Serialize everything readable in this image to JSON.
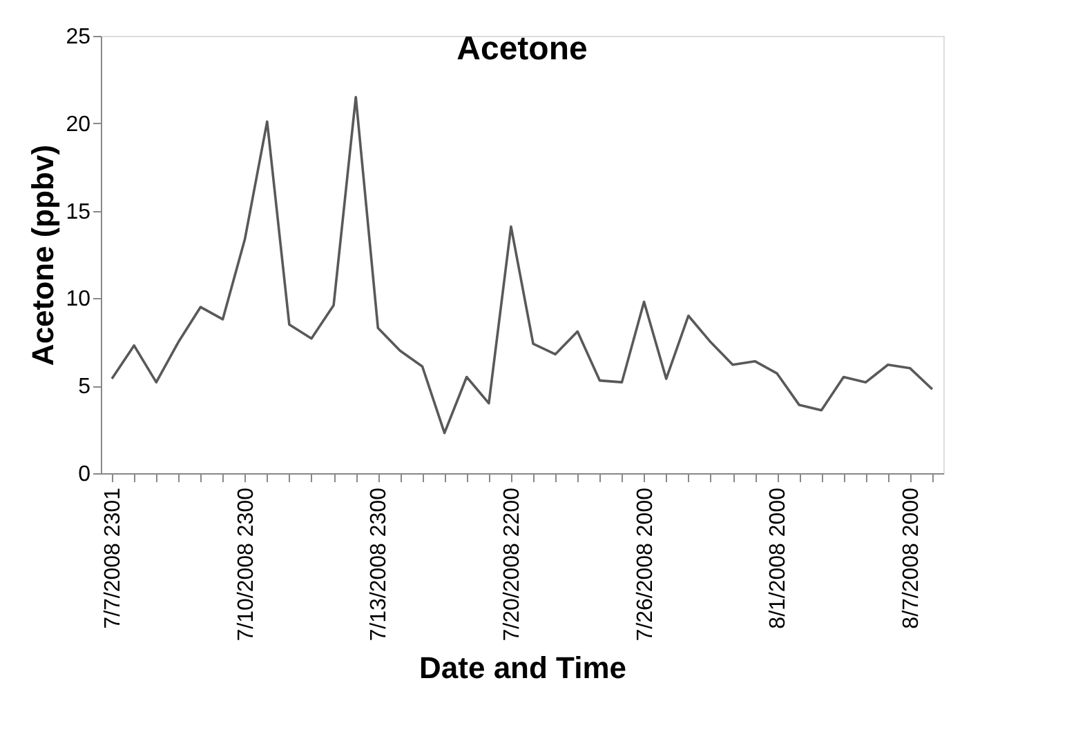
{
  "chart_data": {
    "type": "line",
    "title": "Acetone",
    "xlabel": "Date and Time",
    "ylabel": "Acetone (ppbv)",
    "categories": [
      "7/7/2008  2301",
      null,
      null,
      null,
      null,
      null,
      "7/10/2008 2300",
      null,
      null,
      null,
      null,
      null,
      "7/13/2008 2300",
      null,
      null,
      null,
      null,
      null,
      "7/20/2008 2200",
      null,
      null,
      null,
      null,
      null,
      "7/26/2008 2000",
      null,
      null,
      null,
      null,
      null,
      "8/1/2008 2000",
      null,
      null,
      null,
      null,
      null,
      "8/7/2008 2000",
      null
    ],
    "series": [
      {
        "color": "#595959",
        "values": [
          5.4,
          7.3,
          5.2,
          7.5,
          9.5,
          8.8,
          13.4,
          20.1,
          8.5,
          7.7,
          9.6,
          21.5,
          8.3,
          7.0,
          6.1,
          2.3,
          5.5,
          4.0,
          14.1,
          7.4,
          6.8,
          8.1,
          5.3,
          5.2,
          9.8,
          5.4,
          9.0,
          7.5,
          6.2,
          6.4,
          5.7,
          3.9,
          3.6,
          5.5,
          5.2,
          6.2,
          6.0,
          4.8
        ]
      }
    ],
    "ylim": [
      0,
      25
    ],
    "yticks": [
      0,
      5,
      10,
      15,
      20,
      25
    ],
    "grid": false,
    "legend": false,
    "marker": "none",
    "line_style": "solid"
  }
}
